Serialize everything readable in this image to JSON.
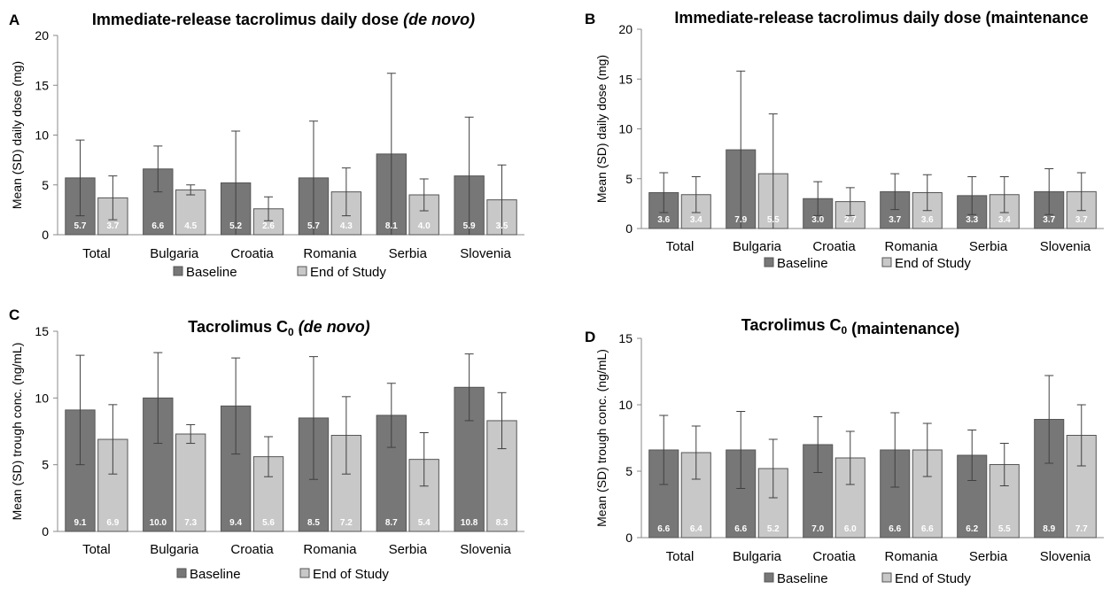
{
  "colors": {
    "baseline": "#777777",
    "end_of_study": "#c8c8c8",
    "bar_edge": "#555555",
    "axis": "#888888",
    "errorbar": "#404040"
  },
  "chart_data": [
    {
      "panel": "A",
      "type": "bar",
      "title_main": "Immediate-release tacrolimus daily dose ",
      "title_italic": "(de novo)",
      "ylabel": "Mean (SD) daily dose (mg)",
      "ylim": [
        0,
        20
      ],
      "yticks": [
        "0",
        "5",
        "10",
        "15",
        "20"
      ],
      "categories": [
        "Total",
        "Bulgaria",
        "Croatia",
        "Romania",
        "Serbia",
        "Slovenia"
      ],
      "series": [
        {
          "name": "Baseline",
          "values": [
            5.7,
            6.6,
            5.2,
            5.7,
            8.1,
            5.9
          ],
          "sd": [
            3.8,
            2.3,
            5.2,
            5.7,
            8.1,
            5.9
          ],
          "labels": [
            "5.7",
            "6.6",
            "5.2",
            "5.7",
            "8.1",
            "5.9"
          ]
        },
        {
          "name": "End of Study",
          "values": [
            3.7,
            4.5,
            2.6,
            4.3,
            4.0,
            3.5
          ],
          "sd": [
            2.2,
            0.5,
            1.2,
            2.4,
            1.6,
            3.5
          ],
          "labels": [
            "3.7",
            "4.5",
            "2.6",
            "4.3",
            "4.0",
            "3.5"
          ]
        }
      ],
      "legend_position": "bottom"
    },
    {
      "panel": "B",
      "type": "bar",
      "title_main": "Immediate-release tacrolimus daily dose (maintenance",
      "title_italic": "",
      "ylabel": "Mean (SD) daily dose (mg)",
      "ylim": [
        0,
        20
      ],
      "yticks": [
        "0",
        "5",
        "10",
        "15",
        "20"
      ],
      "categories": [
        "Total",
        "Bulgaria",
        "Croatia",
        "Romania",
        "Serbia",
        "Slovenia"
      ],
      "series": [
        {
          "name": "Baseline",
          "values": [
            3.6,
            7.9,
            3.0,
            3.7,
            3.3,
            3.7
          ],
          "sd": [
            2.0,
            7.9,
            1.7,
            1.8,
            1.9,
            2.3
          ],
          "labels": [
            "3.6",
            "7.9",
            "3.0",
            "3.7",
            "3.3",
            "3.7"
          ]
        },
        {
          "name": "End of Study",
          "values": [
            3.4,
            5.5,
            2.7,
            3.6,
            3.4,
            3.7
          ],
          "sd": [
            1.8,
            6.0,
            1.4,
            1.8,
            1.8,
            1.9
          ],
          "labels": [
            "3.4",
            "5.5",
            "2.7",
            "3.6",
            "3.4",
            "3.7"
          ]
        }
      ],
      "legend_position": "bottom"
    },
    {
      "panel": "C",
      "type": "bar",
      "title_main": "Tacrolimus C",
      "title_sub": "0",
      "title_italic": " (de novo)",
      "ylabel": "Mean (SD) trough conc. (ng/mL)",
      "ylim": [
        0,
        15
      ],
      "yticks": [
        "0",
        "5",
        "10",
        "15"
      ],
      "categories": [
        "Total",
        "Bulgaria",
        "Croatia",
        "Romania",
        "Serbia",
        "Slovenia"
      ],
      "series": [
        {
          "name": "Baseline",
          "values": [
            9.1,
            10.0,
            9.4,
            8.5,
            8.7,
            10.8
          ],
          "sd": [
            4.1,
            3.4,
            3.6,
            4.6,
            2.4,
            2.5
          ],
          "labels": [
            "9.1",
            "10.0",
            "9.4",
            "8.5",
            "8.7",
            "10.8"
          ]
        },
        {
          "name": "End of Study",
          "values": [
            6.9,
            7.3,
            5.6,
            7.2,
            5.4,
            8.3
          ],
          "sd": [
            2.6,
            0.7,
            1.5,
            2.9,
            2.0,
            2.1
          ],
          "labels": [
            "6.9",
            "7.3",
            "5.6",
            "7.2",
            "5.4",
            "8.3"
          ]
        }
      ],
      "legend_position": "bottom"
    },
    {
      "panel": "D",
      "type": "bar",
      "title_main": "Tacrolimus C",
      "title_sub": "0",
      "title_italic": "",
      "title_tail": " (maintenance)",
      "ylabel": "Mean (SD) trough conc. (ng/mL)",
      "ylim": [
        0,
        15
      ],
      "yticks": [
        "0",
        "5",
        "10",
        "15"
      ],
      "categories": [
        "Total",
        "Bulgaria",
        "Croatia",
        "Romania",
        "Serbia",
        "Slovenia"
      ],
      "series": [
        {
          "name": "Baseline",
          "values": [
            6.6,
            6.6,
            7.0,
            6.6,
            6.2,
            8.9
          ],
          "sd": [
            2.6,
            2.9,
            2.1,
            2.8,
            1.9,
            3.3
          ],
          "labels": [
            "6.6",
            "6.6",
            "7.0",
            "6.6",
            "6.2",
            "8.9"
          ]
        },
        {
          "name": "End of Study",
          "values": [
            6.4,
            5.2,
            6.0,
            6.6,
            5.5,
            7.7
          ],
          "sd": [
            2.0,
            2.2,
            2.0,
            2.0,
            1.6,
            2.3
          ],
          "labels": [
            "6.4",
            "5.2",
            "6.0",
            "6.6",
            "5.5",
            "7.7"
          ]
        }
      ],
      "legend_position": "bottom"
    }
  ]
}
